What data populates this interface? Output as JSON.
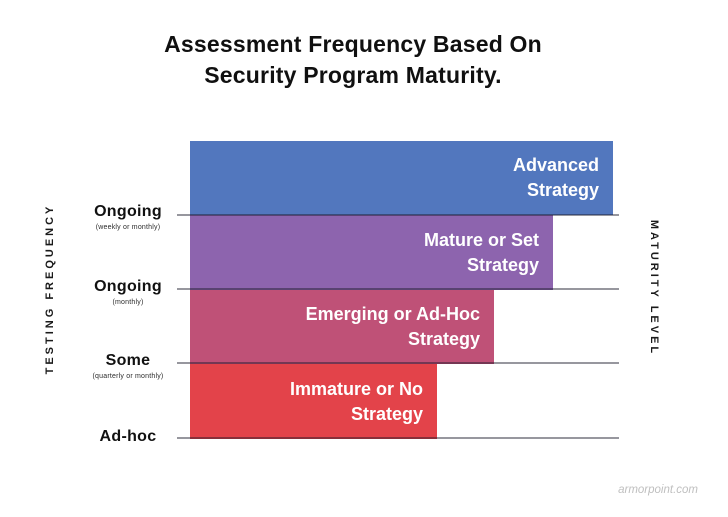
{
  "title": {
    "line1": "Assessment Frequency Based On",
    "line2": "Security Program Maturity."
  },
  "axes": {
    "left_title": "TESTING FREQUENCY",
    "right_title": "MATURITY LEVEL"
  },
  "y_labels": [
    {
      "main": "Ongoing",
      "sub": "(weekly or monthly)"
    },
    {
      "main": "Ongoing",
      "sub": "(monthly)"
    },
    {
      "main": "Some",
      "sub": "(quarterly or monthly)"
    },
    {
      "main": "Ad-hoc",
      "sub": ""
    }
  ],
  "bars": [
    {
      "label": "Advanced\nStrategy",
      "color": "#5277BE",
      "width_pct": 100.0
    },
    {
      "label": "Mature or Set\nStrategy",
      "color": "#8D64AE",
      "width_pct": 85.8
    },
    {
      "label": "Emerging or Ad-Hoc\nStrategy",
      "color": "#BF5177",
      "width_pct": 71.9
    },
    {
      "label": "Immature or No\nStrategy",
      "color": "#E3434A",
      "width_pct": 58.4
    }
  ],
  "watermark": "armorpoint.com",
  "chart_data": {
    "type": "bar",
    "orientation": "horizontal",
    "title": "Assessment Frequency Based On Security Program Maturity.",
    "xlabel": "MATURITY LEVEL",
    "ylabel": "TESTING FREQUENCY",
    "categories": [
      "Ongoing (weekly or monthly)",
      "Ongoing (monthly)",
      "Some (quarterly or monthly)",
      "Ad-hoc"
    ],
    "series": [
      {
        "name": "Maturity level (relative bar length, % of longest bar, estimated)",
        "values": [
          100,
          86,
          72,
          58
        ]
      }
    ],
    "bar_labels": [
      "Advanced Strategy",
      "Mature or Set Strategy",
      "Emerging or Ad-Hoc Strategy",
      "Immature or No Strategy"
    ],
    "colors": [
      "#5277BE",
      "#8D64AE",
      "#BF5177",
      "#E3434A"
    ],
    "grid": true,
    "legend": false,
    "notes": "Bars stacked top-to-bottom from most to least mature; each bar bottom sits on a gridline labeled with its testing frequency."
  }
}
